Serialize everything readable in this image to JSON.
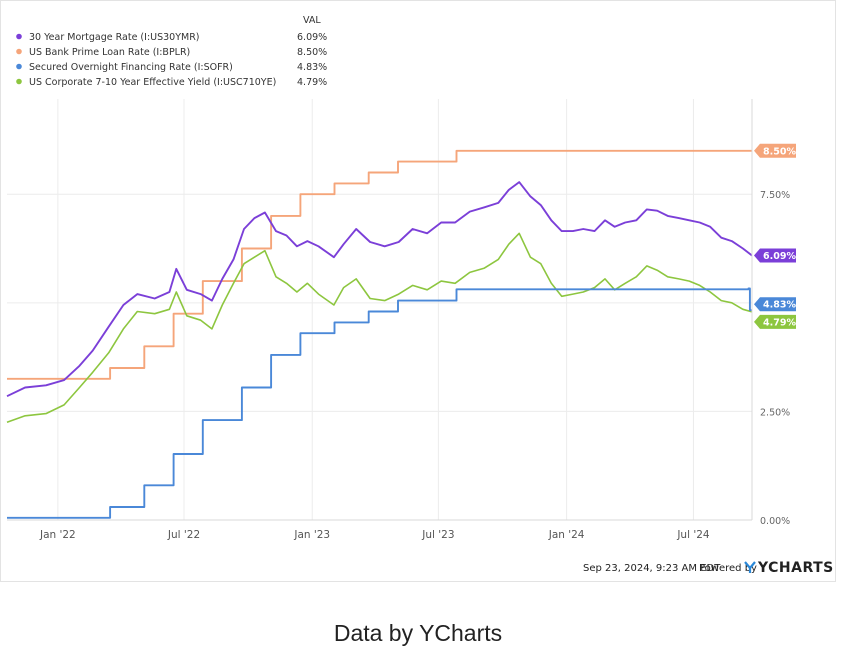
{
  "caption": "Data by YCharts",
  "footer": {
    "timestamp": "Sep 23, 2024, 9:23 AM EDT",
    "powered_by": "Powered by",
    "brand": "YCHARTS"
  },
  "chart_data": {
    "type": "line",
    "legend_header": "VAL",
    "x_ticks": [
      "Jan '22",
      "Jul '22",
      "Jan '23",
      "Jul '23",
      "Jan '24",
      "Jul '24"
    ],
    "y_ticks": [
      "0.00%",
      "2.50%",
      "5.00%",
      "7.50%"
    ],
    "ylim": [
      0,
      9.6
    ],
    "xlim": [
      "2021-10-20",
      "2024-09-23"
    ],
    "grid": true,
    "legend_placement": "top-left",
    "series": [
      {
        "name": "30 Year Mortgage Rate (I:US30YMR)",
        "value_label": "6.09%",
        "color": "#7b3fd8",
        "interpolation": "linear",
        "points": [
          [
            "2021-10-20",
            2.85
          ],
          [
            "2021-11-15",
            3.05
          ],
          [
            "2021-12-15",
            3.1
          ],
          [
            "2022-01-10",
            3.22
          ],
          [
            "2022-02-01",
            3.55
          ],
          [
            "2022-02-20",
            3.9
          ],
          [
            "2022-03-15",
            4.45
          ],
          [
            "2022-04-05",
            4.95
          ],
          [
            "2022-04-25",
            5.2
          ],
          [
            "2022-05-20",
            5.1
          ],
          [
            "2022-06-10",
            5.25
          ],
          [
            "2022-06-20",
            5.78
          ],
          [
            "2022-07-05",
            5.3
          ],
          [
            "2022-07-25",
            5.2
          ],
          [
            "2022-08-10",
            5.05
          ],
          [
            "2022-08-25",
            5.55
          ],
          [
            "2022-09-10",
            6.0
          ],
          [
            "2022-09-25",
            6.7
          ],
          [
            "2022-10-10",
            6.95
          ],
          [
            "2022-10-25",
            7.08
          ],
          [
            "2022-11-10",
            6.65
          ],
          [
            "2022-11-25",
            6.55
          ],
          [
            "2022-12-10",
            6.3
          ],
          [
            "2022-12-25",
            6.42
          ],
          [
            "2023-01-10",
            6.3
          ],
          [
            "2023-02-01",
            6.05
          ],
          [
            "2023-02-15",
            6.35
          ],
          [
            "2023-03-05",
            6.7
          ],
          [
            "2023-03-25",
            6.4
          ],
          [
            "2023-04-15",
            6.3
          ],
          [
            "2023-05-05",
            6.4
          ],
          [
            "2023-05-25",
            6.7
          ],
          [
            "2023-06-15",
            6.6
          ],
          [
            "2023-07-05",
            6.85
          ],
          [
            "2023-07-25",
            6.85
          ],
          [
            "2023-08-15",
            7.1
          ],
          [
            "2023-09-05",
            7.2
          ],
          [
            "2023-09-25",
            7.3
          ],
          [
            "2023-10-10",
            7.6
          ],
          [
            "2023-10-25",
            7.78
          ],
          [
            "2023-11-10",
            7.45
          ],
          [
            "2023-11-25",
            7.25
          ],
          [
            "2023-12-10",
            6.9
          ],
          [
            "2023-12-25",
            6.65
          ],
          [
            "2024-01-10",
            6.65
          ],
          [
            "2024-01-25",
            6.7
          ],
          [
            "2024-02-10",
            6.65
          ],
          [
            "2024-02-25",
            6.9
          ],
          [
            "2024-03-10",
            6.75
          ],
          [
            "2024-03-25",
            6.85
          ],
          [
            "2024-04-10",
            6.9
          ],
          [
            "2024-04-25",
            7.15
          ],
          [
            "2024-05-10",
            7.12
          ],
          [
            "2024-05-25",
            7.0
          ],
          [
            "2024-06-10",
            6.95
          ],
          [
            "2024-06-25",
            6.9
          ],
          [
            "2024-07-10",
            6.85
          ],
          [
            "2024-07-25",
            6.75
          ],
          [
            "2024-08-10",
            6.5
          ],
          [
            "2024-08-25",
            6.42
          ],
          [
            "2024-09-10",
            6.25
          ],
          [
            "2024-09-23",
            6.09
          ]
        ]
      },
      {
        "name": "US Bank Prime Loan Rate (I:BPLR)",
        "value_label": "8.50%",
        "color": "#f5a57a",
        "interpolation": "step",
        "points": [
          [
            "2021-10-20",
            3.25
          ],
          [
            "2022-03-17",
            3.5
          ],
          [
            "2022-05-05",
            4.0
          ],
          [
            "2022-06-16",
            4.75
          ],
          [
            "2022-07-28",
            5.5
          ],
          [
            "2022-09-22",
            6.25
          ],
          [
            "2022-11-03",
            7.0
          ],
          [
            "2022-12-15",
            7.5
          ],
          [
            "2023-02-02",
            7.75
          ],
          [
            "2023-03-23",
            8.0
          ],
          [
            "2023-05-04",
            8.25
          ],
          [
            "2023-07-27",
            8.5
          ],
          [
            "2024-09-18",
            8.5
          ],
          [
            "2024-09-23",
            8.5
          ]
        ]
      },
      {
        "name": "Secured Overnight Financing Rate (I:SOFR)",
        "value_label": "4.83%",
        "color": "#4a88d8",
        "interpolation": "step",
        "points": [
          [
            "2021-10-20",
            0.05
          ],
          [
            "2022-03-17",
            0.3
          ],
          [
            "2022-05-05",
            0.8
          ],
          [
            "2022-06-16",
            1.52
          ],
          [
            "2022-07-28",
            2.3
          ],
          [
            "2022-09-22",
            3.05
          ],
          [
            "2022-11-03",
            3.8
          ],
          [
            "2022-12-15",
            4.3
          ],
          [
            "2023-02-02",
            4.55
          ],
          [
            "2023-03-23",
            4.8
          ],
          [
            "2023-05-04",
            5.05
          ],
          [
            "2023-07-27",
            5.31
          ],
          [
            "2024-09-18",
            5.33
          ],
          [
            "2024-09-20",
            4.83
          ],
          [
            "2024-09-23",
            4.83
          ]
        ]
      },
      {
        "name": "US Corporate 7-10 Year Effective Yield (I:USC710YE)",
        "value_label": "4.79%",
        "color": "#8dc63f",
        "interpolation": "linear",
        "points": [
          [
            "2021-10-20",
            2.25
          ],
          [
            "2021-11-15",
            2.4
          ],
          [
            "2021-12-15",
            2.45
          ],
          [
            "2022-01-10",
            2.65
          ],
          [
            "2022-02-01",
            3.05
          ],
          [
            "2022-02-20",
            3.4
          ],
          [
            "2022-03-15",
            3.85
          ],
          [
            "2022-04-05",
            4.4
          ],
          [
            "2022-04-25",
            4.8
          ],
          [
            "2022-05-20",
            4.75
          ],
          [
            "2022-06-10",
            4.85
          ],
          [
            "2022-06-20",
            5.25
          ],
          [
            "2022-07-05",
            4.7
          ],
          [
            "2022-07-25",
            4.6
          ],
          [
            "2022-08-10",
            4.4
          ],
          [
            "2022-08-25",
            4.95
          ],
          [
            "2022-09-10",
            5.45
          ],
          [
            "2022-09-25",
            5.9
          ],
          [
            "2022-10-10",
            6.05
          ],
          [
            "2022-10-25",
            6.2
          ],
          [
            "2022-11-10",
            5.6
          ],
          [
            "2022-11-25",
            5.45
          ],
          [
            "2022-12-10",
            5.25
          ],
          [
            "2022-12-25",
            5.45
          ],
          [
            "2023-01-10",
            5.2
          ],
          [
            "2023-02-01",
            4.95
          ],
          [
            "2023-02-15",
            5.35
          ],
          [
            "2023-03-05",
            5.55
          ],
          [
            "2023-03-25",
            5.1
          ],
          [
            "2023-04-15",
            5.05
          ],
          [
            "2023-05-05",
            5.2
          ],
          [
            "2023-05-25",
            5.4
          ],
          [
            "2023-06-15",
            5.3
          ],
          [
            "2023-07-05",
            5.5
          ],
          [
            "2023-07-25",
            5.45
          ],
          [
            "2023-08-15",
            5.7
          ],
          [
            "2023-09-05",
            5.8
          ],
          [
            "2023-09-25",
            6.0
          ],
          [
            "2023-10-10",
            6.35
          ],
          [
            "2023-10-25",
            6.6
          ],
          [
            "2023-11-10",
            6.05
          ],
          [
            "2023-11-25",
            5.9
          ],
          [
            "2023-12-10",
            5.45
          ],
          [
            "2023-12-25",
            5.15
          ],
          [
            "2024-01-10",
            5.2
          ],
          [
            "2024-01-25",
            5.25
          ],
          [
            "2024-02-10",
            5.35
          ],
          [
            "2024-02-25",
            5.55
          ],
          [
            "2024-03-10",
            5.3
          ],
          [
            "2024-03-25",
            5.45
          ],
          [
            "2024-04-10",
            5.6
          ],
          [
            "2024-04-25",
            5.85
          ],
          [
            "2024-05-10",
            5.75
          ],
          [
            "2024-05-25",
            5.6
          ],
          [
            "2024-06-10",
            5.55
          ],
          [
            "2024-06-25",
            5.5
          ],
          [
            "2024-07-10",
            5.4
          ],
          [
            "2024-07-25",
            5.25
          ],
          [
            "2024-08-10",
            5.05
          ],
          [
            "2024-08-25",
            5.0
          ],
          [
            "2024-09-10",
            4.85
          ],
          [
            "2024-09-23",
            4.79
          ]
        ]
      }
    ]
  }
}
